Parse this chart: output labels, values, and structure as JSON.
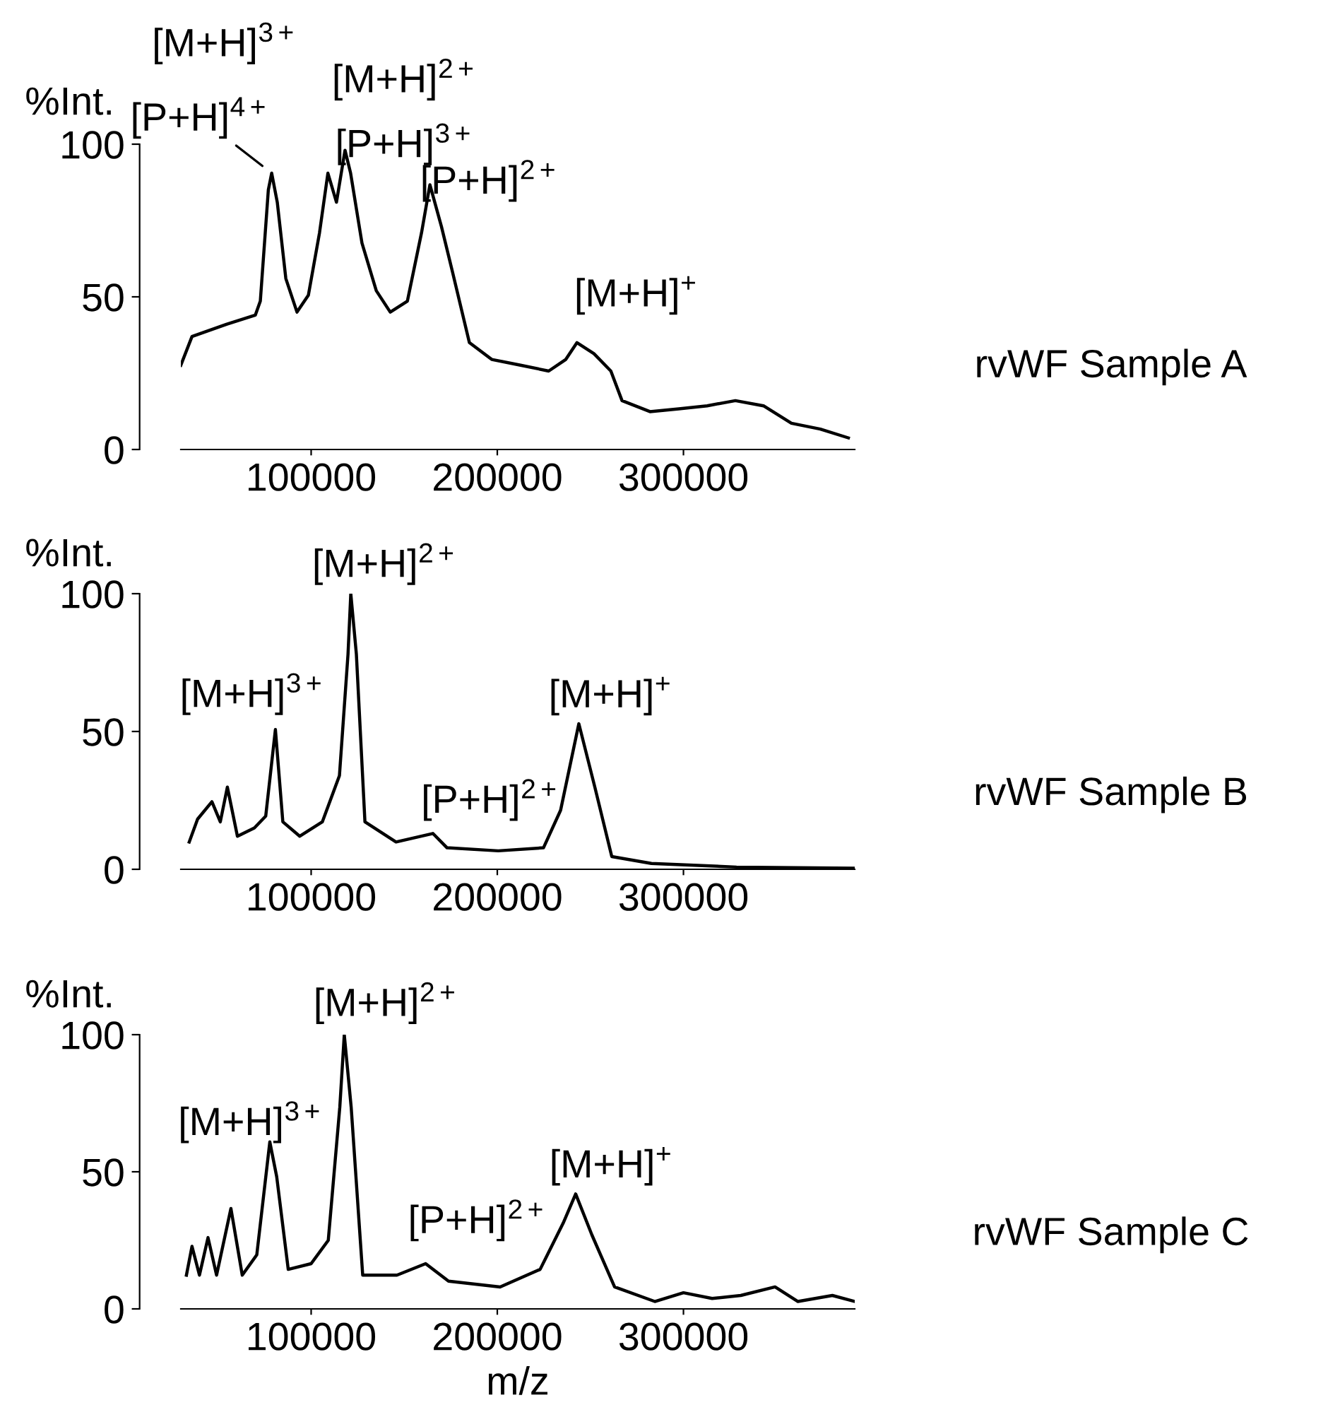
{
  "chart_data": [
    {
      "type": "line",
      "ylabel": "%Int.",
      "xlim": [
        30000,
        392000
      ],
      "ylim": [
        0,
        100
      ],
      "xticks": [
        100000,
        200000,
        300000
      ],
      "yticks": [
        0,
        50,
        100
      ],
      "grid": false,
      "legend": false,
      "marker": "none",
      "line_style": "solid",
      "series": [
        {
          "color": "#000000",
          "x": [
            30000,
            36000,
            54500,
            70000,
            72700,
            77000,
            78800,
            81800,
            86400,
            92400,
            98500,
            104500,
            109000,
            113600,
            118200,
            121200,
            127300,
            135000,
            142500,
            151700,
            159300,
            163800,
            170000,
            176000,
            185000,
            197000,
            212500,
            227600,
            236800,
            242800,
            251900,
            261000,
            267000,
            282000,
            297500,
            312700,
            327900,
            343000,
            358000,
            373500,
            388600
          ],
          "values": [
            27.6,
            37,
            41,
            44,
            48.6,
            85,
            90.5,
            81,
            56,
            45,
            50.5,
            71,
            90.5,
            81,
            98,
            90.5,
            67.6,
            52,
            45,
            48.6,
            71,
            86.7,
            73,
            58,
            35,
            29.5,
            27.6,
            25.7,
            29.5,
            35,
            31.4,
            25.7,
            16,
            12.4,
            13.3,
            14.3,
            16,
            14.3,
            8.6,
            6.7,
            3.8
          ]
        }
      ],
      "annotations": [
        "[M+H]$^{3+}$",
        {
          "text": "[P+H]$^{4+}$",
          "x": 78800,
          "y": 90.5
        },
        {
          "text": "[M+H]$^{2+}$",
          "x": 118200,
          "y": 98
        },
        {
          "text": "[P+H]$^{3+}$",
          "x": 118200,
          "y": 98
        },
        {
          "text": "[P+H]$^{2+}$",
          "x": 163800,
          "y": 86.7
        },
        {
          "text": "[M+H]$^{+}$",
          "x": 242800,
          "y": 35
        },
        "rvWF Sample A"
      ]
    },
    {
      "type": "line",
      "ylabel": "%Int.",
      "xlim": [
        30000,
        392000
      ],
      "ylim": [
        0,
        100
      ],
      "xticks": [
        100000,
        200000,
        300000
      ],
      "yticks": [
        0,
        50,
        100
      ],
      "grid": false,
      "legend": false,
      "marker": "none",
      "line_style": "solid",
      "series": [
        {
          "color": "#000000",
          "x": [
            34500,
            39000,
            46700,
            51200,
            55000,
            60400,
            69500,
            75600,
            80800,
            84800,
            93900,
            106000,
            115200,
            119800,
            121300,
            124300,
            128900,
            145600,
            165400,
            173000,
            200500,
            224800,
            234000,
            243800,
            252400,
            261500,
            282800,
            328500,
            392000
          ],
          "values": [
            9.9,
            18.2,
            24.5,
            17.2,
            29.8,
            12,
            15,
            19.3,
            50.7,
            17.2,
            12,
            17.2,
            34,
            78,
            100,
            78,
            17.2,
            9.9,
            13,
            7.8,
            6.7,
            7.8,
            21.4,
            52.8,
            29.8,
            4.6,
            2.1,
            0.8,
            0.4
          ]
        }
      ],
      "annotations": [
        {
          "text": "[M+H]$^{3+}$",
          "x": 80800,
          "y": 50.7
        },
        {
          "text": "[M+H]$^{2+}$",
          "x": 121300,
          "y": 100
        },
        {
          "text": "[P+H]$^{2+}$",
          "x": 165400,
          "y": 13
        },
        {
          "text": "[M+H]$^{+}$",
          "x": 243800,
          "y": 52.8
        },
        "rvWF Sample B"
      ]
    },
    {
      "type": "line",
      "ylabel": "%Int.",
      "xlabel": "m/z",
      "xlim": [
        30000,
        392000
      ],
      "ylim": [
        0,
        100
      ],
      "xticks": [
        100000,
        200000,
        300000
      ],
      "yticks": [
        0,
        50,
        100
      ],
      "grid": false,
      "legend": false,
      "marker": "none",
      "line_style": "solid",
      "series": [
        {
          "color": "#000000",
          "x": [
            33000,
            36000,
            40000,
            44600,
            49200,
            56900,
            63000,
            70800,
            77800,
            81500,
            87700,
            100000,
            109200,
            115400,
            117800,
            121500,
            127700,
            146100,
            161500,
            173800,
            201500,
            223000,
            235400,
            242100,
            250800,
            263000,
            284600,
            300000,
            315400,
            330800,
            349200,
            361500,
            380000,
            392000
          ],
          "values": [
            12.3,
            22.8,
            12.3,
            26,
            12.3,
            36.6,
            12.3,
            19.7,
            60.9,
            48.2,
            14.4,
            16.5,
            25,
            73.6,
            100,
            73.6,
            12.3,
            12.3,
            16.5,
            10.1,
            8,
            14.4,
            31.3,
            41.9,
            27,
            8,
            2.7,
            5.9,
            3.8,
            4.9,
            8,
            2.7,
            4.9,
            2.7
          ]
        }
      ],
      "annotations": [
        {
          "text": "[M+H]$^{3+}$",
          "x": 77800,
          "y": 60.9
        },
        {
          "text": "[M+H]$^{2+}$",
          "x": 117800,
          "y": 100
        },
        {
          "text": "[P+H]$^{2+}$",
          "x": 161500,
          "y": 16.5
        },
        {
          "text": "[M+H]$^{+}$",
          "x": 242100,
          "y": 41.9
        },
        "rvWF Sample C"
      ]
    }
  ]
}
